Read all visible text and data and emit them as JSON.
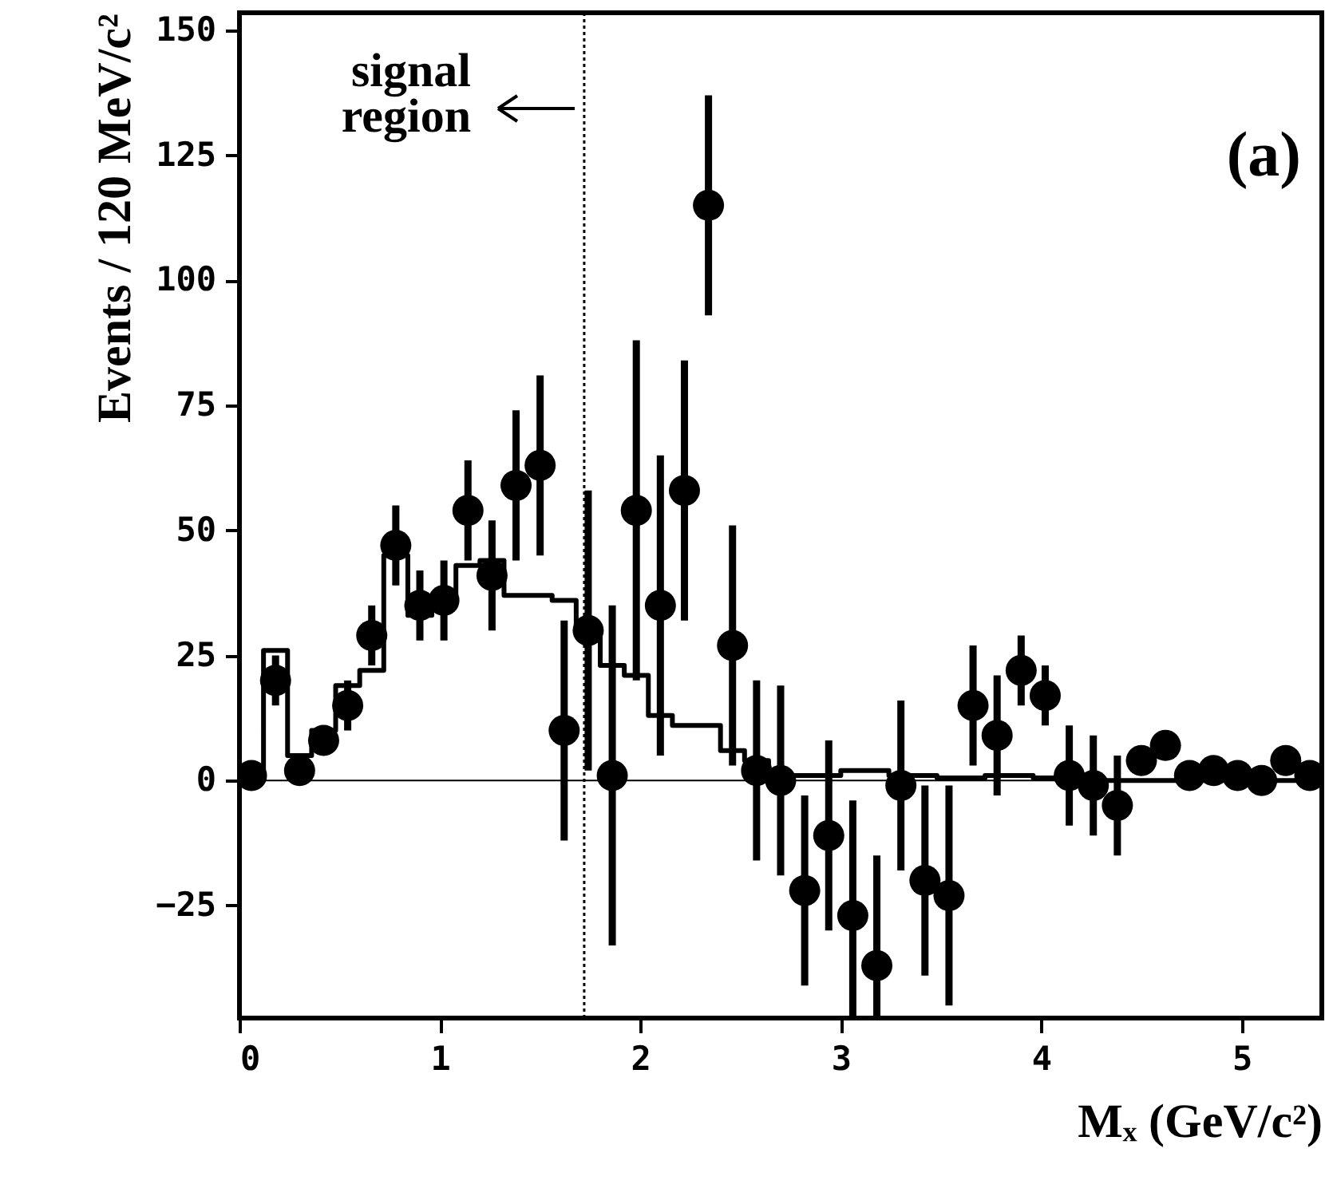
{
  "chart_data": {
    "type": "scatter",
    "xlabel": "Mₓ (GeV/c²)",
    "ylabel": "Events / 120 MeV/c²",
    "annotations": [
      "signal region",
      "(a)"
    ],
    "xlim": [
      0,
      5.4
    ],
    "xticks": [
      0,
      1,
      2,
      3,
      4,
      5
    ],
    "ylim": [
      -47.5,
      153.5
    ],
    "yticks": [
      -25,
      0,
      25,
      50,
      75,
      100,
      125,
      150
    ],
    "grid": false,
    "ref_lines": [
      {
        "axis": "y",
        "value": 0,
        "line_style": "solid"
      },
      {
        "axis": "x",
        "value": 1.72,
        "line_style": "dotted"
      }
    ],
    "series": [
      {
        "type": "step",
        "color": "#000000",
        "x": [
          0,
          0.12,
          0.24,
          0.36,
          0.48,
          0.6,
          0.72,
          0.84,
          0.96,
          1.08,
          1.2,
          1.32,
          1.44,
          1.56,
          1.68,
          1.8,
          1.92,
          2.04,
          2.16,
          2.28,
          2.4,
          2.52,
          2.64,
          2.76,
          2.88,
          3.0,
          3.12,
          3.24,
          3.36,
          3.48,
          3.6,
          3.72,
          3.84,
          3.96,
          4.08,
          4.2,
          4.32,
          4.44,
          4.56,
          4.68,
          4.8,
          4.92,
          5.04,
          5.16,
          5.28
        ],
        "values": [
          0,
          26,
          5,
          10,
          19,
          22,
          45,
          33,
          37,
          43,
          44,
          37,
          37,
          36,
          30,
          23,
          21,
          13,
          11,
          11,
          6,
          4,
          1,
          1,
          1,
          2,
          2,
          1,
          1,
          0.5,
          0.5,
          1,
          1,
          0.5,
          0,
          0,
          0,
          0,
          0,
          0,
          0,
          0,
          0,
          0,
          0
        ]
      },
      {
        "type": "scatter",
        "color": "#000000",
        "marker": "circle",
        "x": [
          0.06,
          0.18,
          0.3,
          0.42,
          0.54,
          0.66,
          0.78,
          0.9,
          1.02,
          1.14,
          1.26,
          1.38,
          1.5,
          1.62,
          1.74,
          1.86,
          1.98,
          2.1,
          2.22,
          2.34,
          2.46,
          2.58,
          2.7,
          2.82,
          2.94,
          3.06,
          3.18,
          3.3,
          3.42,
          3.54,
          3.66,
          3.78,
          3.9,
          4.02,
          4.14,
          4.26,
          4.38,
          4.5,
          4.62,
          4.74,
          4.86,
          4.98,
          5.1,
          5.22,
          5.34
        ],
        "values": [
          1,
          20,
          2,
          8,
          15,
          29,
          47,
          35,
          36,
          54,
          41,
          59,
          63,
          10,
          30,
          1,
          54,
          35,
          58,
          115,
          27,
          2,
          0,
          -22,
          -11,
          -27,
          -37,
          -1,
          -20,
          -23,
          15,
          9,
          22,
          17,
          1,
          -1,
          -5,
          4,
          7,
          1,
          2,
          1,
          0,
          4,
          1
        ],
        "errors": [
          null,
          5,
          null,
          3,
          5,
          6,
          8,
          7,
          8,
          10,
          11,
          15,
          18,
          22,
          28,
          34,
          34,
          30,
          26,
          22,
          24,
          18,
          19,
          19,
          19,
          [
            -47.5,
            -4
          ],
          [
            -47.5,
            -15
          ],
          17,
          19,
          22,
          12,
          12,
          7,
          6,
          10,
          10,
          10,
          null,
          null,
          null,
          null,
          null,
          null,
          null,
          null
        ]
      }
    ]
  }
}
